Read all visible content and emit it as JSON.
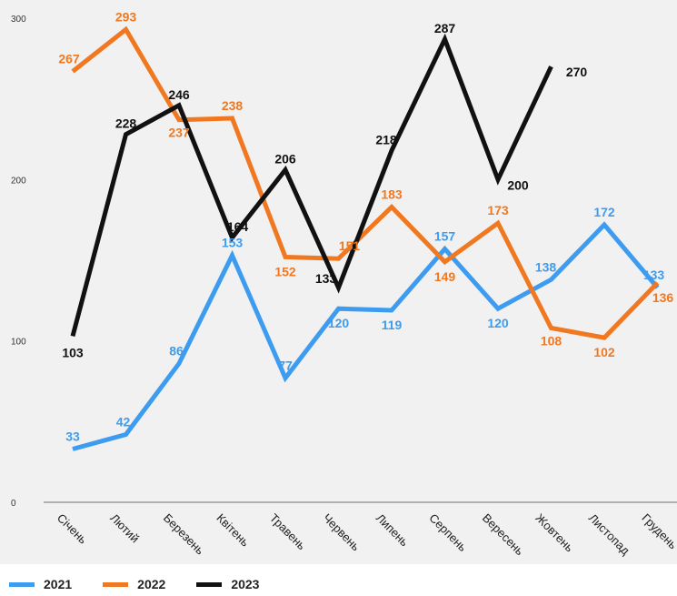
{
  "chart_data": {
    "type": "line",
    "categories": [
      "Січень",
      "Лютий",
      "Березень",
      "Квітень",
      "Травень",
      "Червень",
      "Липень",
      "Серпень",
      "Вересень",
      "Жовтень",
      "Листопад",
      "Грудень"
    ],
    "ylim": [
      0,
      300
    ],
    "yticks": [
      0,
      100,
      200,
      300
    ],
    "grid": false,
    "legend_position": "bottom-left",
    "series": [
      {
        "name": "2021",
        "color": "#3d9cf0",
        "values": [
          33,
          42,
          86,
          153,
          77,
          120,
          119,
          157,
          120,
          138,
          172,
          133
        ]
      },
      {
        "name": "2022",
        "color": "#f07820",
        "values": [
          267,
          293,
          237,
          238,
          152,
          151,
          183,
          149,
          173,
          108,
          102,
          136
        ]
      },
      {
        "name": "2023",
        "color": "#111111",
        "values": [
          103,
          228,
          246,
          164,
          206,
          133,
          218,
          287,
          200,
          270,
          null,
          null
        ]
      }
    ]
  }
}
